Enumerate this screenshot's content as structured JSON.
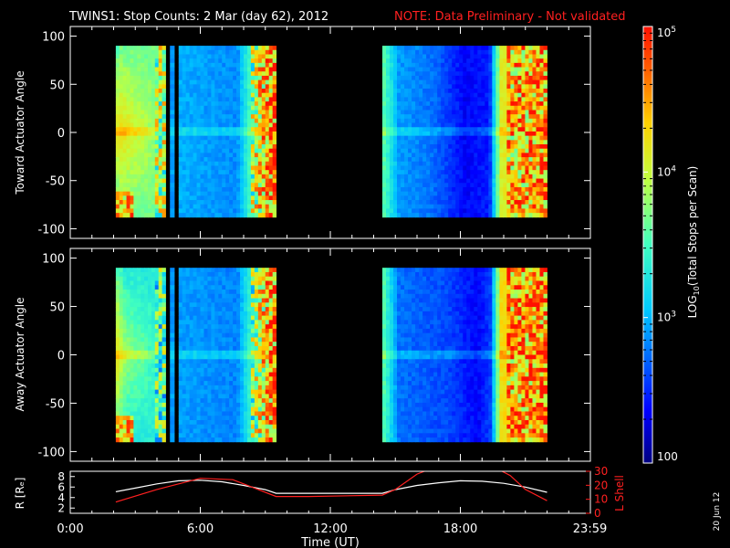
{
  "title": {
    "main": "TWINS1: Stop Counts:  2 Mar (day  62), 2012",
    "note": "NOTE: Data Preliminary - Not validated"
  },
  "date_stamp": "20 Jun 12",
  "colors": {
    "background": "#000000",
    "axes": "#ffffff",
    "note": "#ff2020",
    "r_line": "#ffffff",
    "l_line": "#ff2020"
  },
  "chart_data": [
    {
      "type": "heatmap",
      "name": "Toward Actuator Angle",
      "ylabel": "Toward Actuator Angle",
      "xlim": [
        0,
        24
      ],
      "ylim": [
        -110,
        110
      ],
      "yticks": [
        -100,
        -50,
        0,
        50,
        100
      ],
      "y_extent": [
        -88,
        90
      ],
      "segments": [
        {
          "start": 2.1,
          "end": 4.4,
          "profile": [
            [
              "t",
              0.0,
              0.4
            ],
            [
              "t",
              0.08,
              0.45
            ],
            [
              "y",
              -0.2,
              0.35
            ],
            [
              "y",
              -0.25,
              -0.2
            ]
          ]
        },
        {
          "start": 4.6,
          "end": 4.8,
          "profile": [
            [
              "y",
              0.0,
              0.3
            ]
          ]
        },
        {
          "start": 5.0,
          "end": 9.5,
          "profile": [
            [
              "x",
              0.0,
              0.32
            ],
            [
              "x",
              0.6,
              0.28
            ],
            [
              "x",
              0.82,
              0.65
            ],
            [
              "x",
              0.9,
              0.75
            ],
            [
              "x",
              1.0,
              0.8
            ]
          ]
        },
        {
          "start": 14.4,
          "end": 22.0,
          "profile": [
            [
              "x",
              0.0,
              0.55
            ],
            [
              "x",
              0.1,
              0.3
            ],
            [
              "x",
              0.3,
              0.25
            ],
            [
              "x",
              0.5,
              0.12
            ],
            [
              "x",
              0.65,
              0.15
            ],
            [
              "x",
              0.72,
              0.7
            ],
            [
              "x",
              1.0,
              0.78
            ]
          ]
        }
      ]
    },
    {
      "type": "heatmap",
      "name": "Away Actuator Angle",
      "ylabel": "Away Actuator Angle",
      "xlim": [
        0,
        24
      ],
      "ylim": [
        -110,
        110
      ],
      "yticks": [
        -100,
        -50,
        0,
        50,
        100
      ],
      "y_extent": [
        -90,
        90
      ],
      "segments": [
        {
          "start": 2.1,
          "end": 4.4,
          "profile": [
            [
              "t",
              0.0,
              0.45
            ],
            [
              "t",
              0.2,
              0.35
            ],
            [
              "y",
              0.0,
              0.3
            ],
            [
              "y",
              -0.25,
              -0.1
            ]
          ]
        },
        {
          "start": 4.6,
          "end": 4.8,
          "profile": [
            [
              "y",
              0.0,
              0.3
            ]
          ]
        },
        {
          "start": 5.0,
          "end": 9.5,
          "profile": [
            [
              "x",
              0.0,
              0.3
            ],
            [
              "x",
              0.6,
              0.27
            ],
            [
              "x",
              0.82,
              0.6
            ],
            [
              "x",
              0.92,
              0.75
            ],
            [
              "x",
              1.0,
              0.78
            ]
          ]
        },
        {
          "start": 14.4,
          "end": 22.0,
          "profile": [
            [
              "x",
              0.0,
              0.55
            ],
            [
              "x",
              0.1,
              0.25
            ],
            [
              "x",
              0.4,
              0.2
            ],
            [
              "x",
              0.58,
              0.12
            ],
            [
              "x",
              0.66,
              0.2
            ],
            [
              "x",
              0.72,
              0.75
            ],
            [
              "x",
              1.0,
              0.8
            ]
          ]
        }
      ]
    },
    {
      "type": "colorbar",
      "label": "LOG10(Total Stops per Scan)",
      "scale": "log",
      "range": [
        100,
        100000
      ],
      "tick_labels": [
        {
          "value": 100,
          "text": "100"
        },
        {
          "value": 1000,
          "text": "10^3"
        },
        {
          "value": 10000,
          "text": "10^4"
        },
        {
          "value": 100000,
          "text": "10^5"
        }
      ]
    },
    {
      "type": "line",
      "xlabel": "Time (UT)",
      "xlim": [
        0,
        24
      ],
      "xticks": [
        {
          "value": 0,
          "label": "0:00"
        },
        {
          "value": 6,
          "label": "6:00"
        },
        {
          "value": 12,
          "label": "12:00"
        },
        {
          "value": 18,
          "label": "18:00"
        },
        {
          "value": 23.98,
          "label": "23:59"
        }
      ],
      "ylabel_left": "R [Rₑ]",
      "ylim_left": [
        1,
        9
      ],
      "yticks_left": [
        2,
        4,
        6,
        8
      ],
      "ylabel_right": "L Shell",
      "ylim_right": [
        0,
        30
      ],
      "yticks_right": [
        0,
        10,
        20,
        30
      ],
      "series": [
        {
          "name": "R",
          "axis": "left",
          "x": [
            2.1,
            3.0,
            4.0,
            5.0,
            6.0,
            7.0,
            8.0,
            9.0,
            9.5,
            12.0,
            14.4,
            15.0,
            16.0,
            17.0,
            18.0,
            19.0,
            20.0,
            21.0,
            22.0
          ],
          "y": [
            5.1,
            5.8,
            6.6,
            7.2,
            7.3,
            7.0,
            6.3,
            5.5,
            4.8,
            4.8,
            4.8,
            5.5,
            6.3,
            6.8,
            7.2,
            7.1,
            6.7,
            6.0,
            5.0
          ]
        },
        {
          "name": "L Shell",
          "axis": "right",
          "x": [
            2.1,
            4.0,
            6.0,
            7.5,
            9.5,
            11.0,
            14.4,
            15.0,
            16.0,
            16.5,
            19.8,
            20.3,
            21.0,
            22.0
          ],
          "y": [
            8,
            17,
            25,
            24,
            12,
            12,
            13,
            17,
            28,
            31,
            31,
            27,
            17,
            9
          ]
        }
      ]
    }
  ]
}
